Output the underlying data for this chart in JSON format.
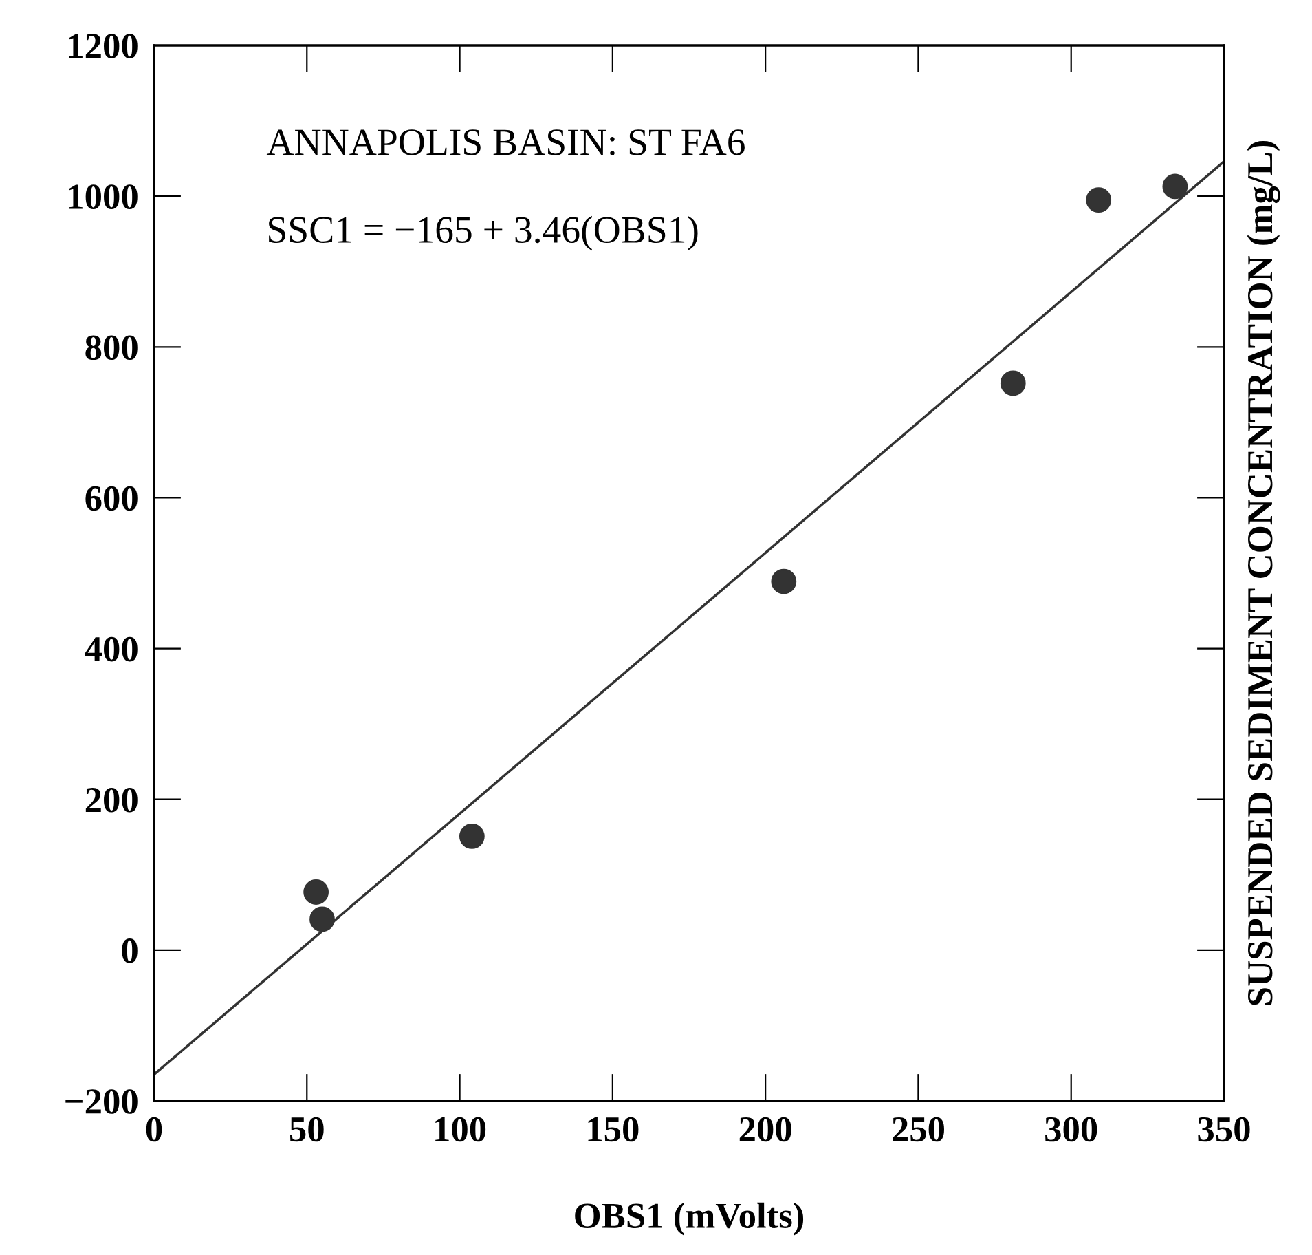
{
  "chart_data": {
    "type": "scatter",
    "xlabel": "OBS1 (mVolts)",
    "ylabel": "SUSPENDED SEDIMENT CONCENTRATION (mg/L)",
    "annotations": [
      "ANNAPOLIS BASIN: ST FA6",
      "SSC1 = −165 + 3.46(OBS1)"
    ],
    "xlim": [
      0,
      350
    ],
    "ylim": [
      -200,
      1200
    ],
    "xticks": [
      0,
      50,
      100,
      150,
      200,
      250,
      300,
      350
    ],
    "yticks": [
      -200,
      0,
      200,
      400,
      600,
      800,
      1000,
      1200
    ],
    "grid": false,
    "legend": false,
    "series": [
      {
        "marker": "circle",
        "color": "#333333",
        "x": [
          53,
          55,
          104,
          206,
          281,
          309,
          334
        ],
        "values": [
          77,
          41,
          151,
          489,
          752,
          995,
          1013
        ]
      },
      {
        "type": "line",
        "marker": "none",
        "color": "#333333",
        "x": [
          0,
          350
        ],
        "values": [
          -165,
          1046
        ]
      }
    ]
  }
}
